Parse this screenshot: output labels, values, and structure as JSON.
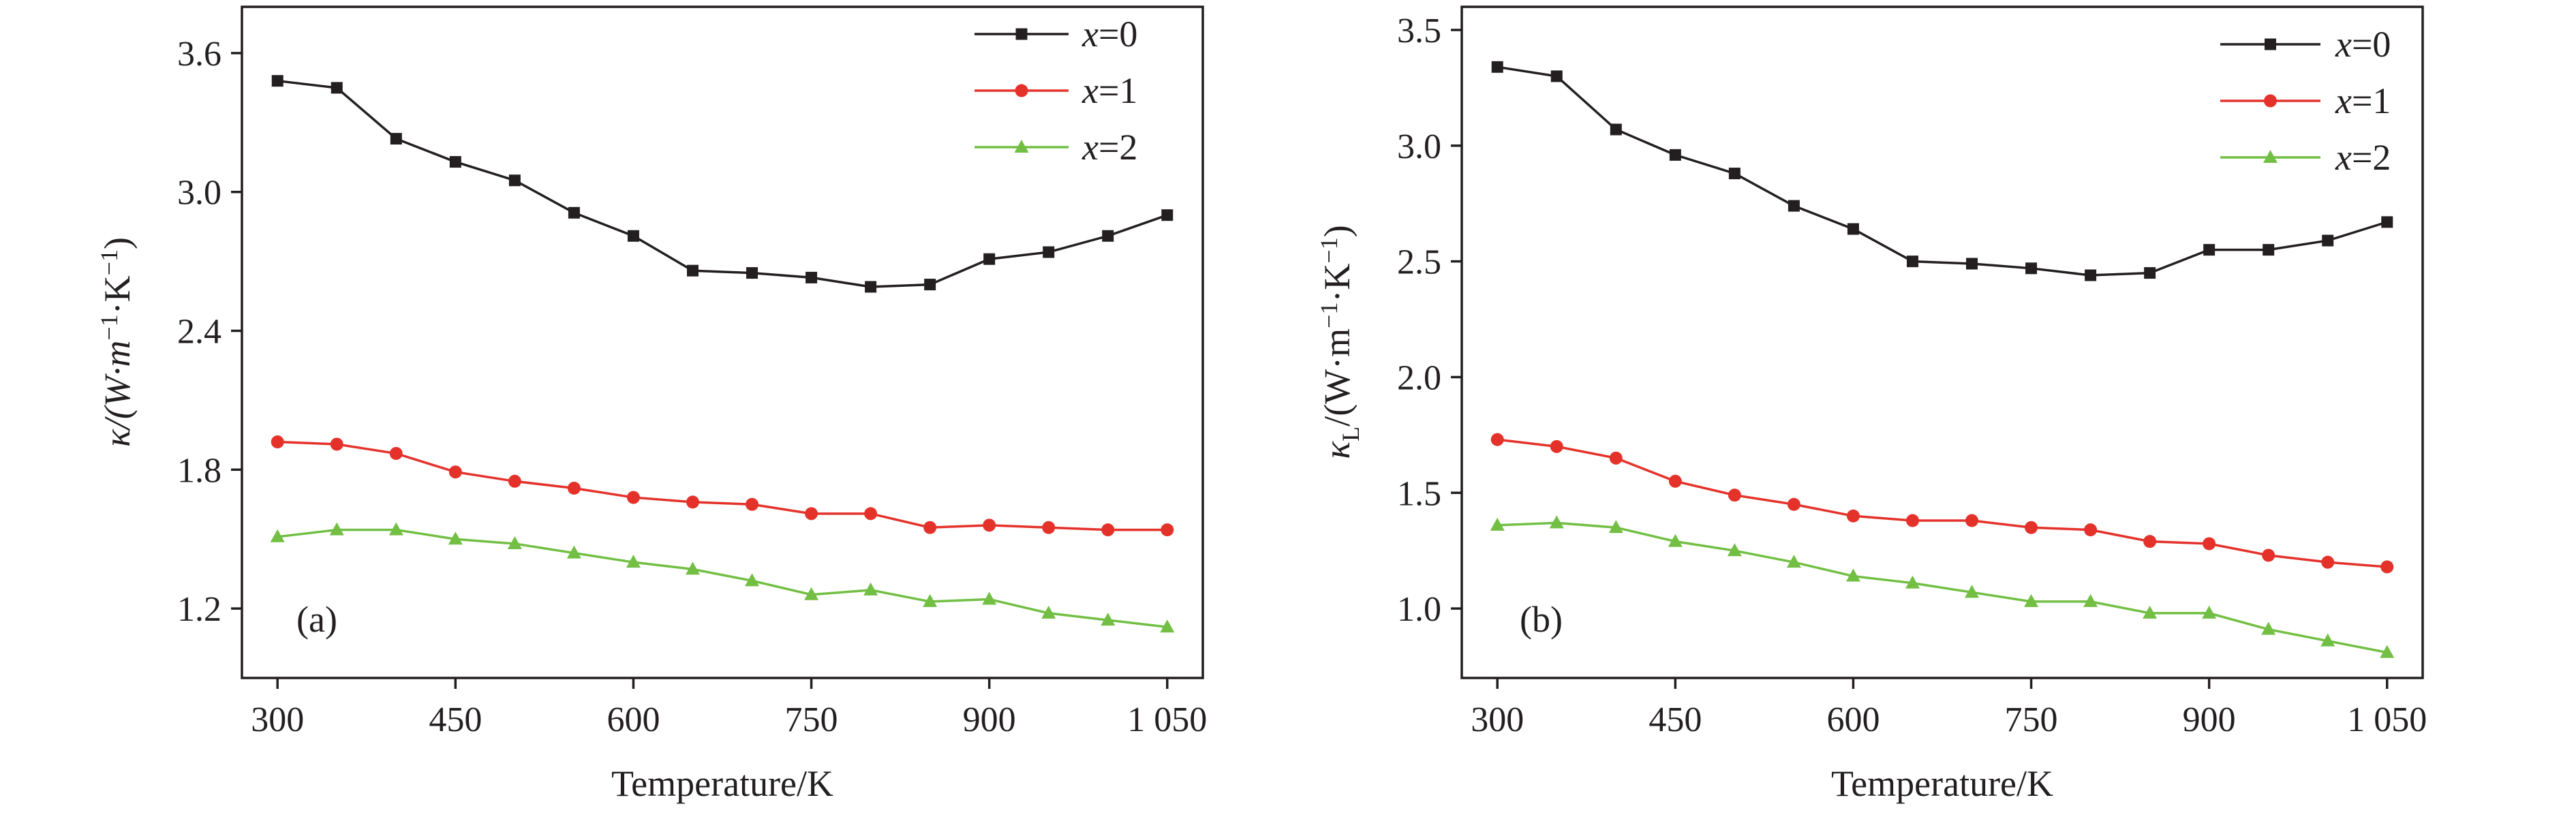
{
  "chart_data": [
    {
      "panel": "(a)",
      "type": "line",
      "xlabel": "Temperature/K",
      "ylabel_main": "κ/(W·m",
      "ylabel_sup1": "−1",
      "ylabel_mid": "·K",
      "ylabel_sup2": "−1",
      "ylabel_end": ")",
      "xlim": [
        270,
        1080
      ],
      "ylim": [
        0.9,
        3.8
      ],
      "xticks": [
        300,
        450,
        600,
        750,
        900,
        1050
      ],
      "xtick_labels": [
        "300",
        "450",
        "600",
        "750",
        "900",
        "1 050"
      ],
      "yticks": [
        1.2,
        1.8,
        2.4,
        3.0,
        3.6
      ],
      "ytick_labels": [
        "1.2",
        "1.8",
        "2.4",
        "3.0",
        "3.6"
      ],
      "x": [
        300,
        350,
        400,
        450,
        500,
        550,
        600,
        650,
        700,
        750,
        800,
        850,
        900,
        950,
        1000,
        1050
      ],
      "series": [
        {
          "name": "x=0",
          "var": "x",
          "eq": "=0",
          "color": "#231f20",
          "marker": "square",
          "values": [
            3.48,
            3.45,
            3.23,
            3.13,
            3.05,
            2.91,
            2.81,
            2.66,
            2.65,
            2.63,
            2.59,
            2.6,
            2.71,
            2.74,
            2.81,
            2.9
          ]
        },
        {
          "name": "x=1",
          "var": "x",
          "eq": "=1",
          "color": "#e4322b",
          "marker": "circle",
          "values": [
            1.92,
            1.91,
            1.87,
            1.79,
            1.75,
            1.72,
            1.68,
            1.66,
            1.65,
            1.61,
            1.61,
            1.55,
            1.56,
            1.55,
            1.54,
            1.54
          ]
        },
        {
          "name": "x=2",
          "var": "x",
          "eq": "=2",
          "color": "#72bf44",
          "marker": "triangle",
          "values": [
            1.51,
            1.54,
            1.54,
            1.5,
            1.48,
            1.44,
            1.4,
            1.37,
            1.32,
            1.26,
            1.28,
            1.23,
            1.24,
            1.18,
            1.15,
            1.12
          ]
        }
      ],
      "legend_position": "top-right"
    },
    {
      "panel": "(b)",
      "type": "line",
      "xlabel": "Temperature/K",
      "ylabel_main": "κ",
      "ylabel_sub": "L",
      "ylabel_rest": "/(W·m",
      "ylabel_sup1": "−1",
      "ylabel_mid": "·K",
      "ylabel_sup2": "−1",
      "ylabel_end": ")",
      "xlim": [
        270,
        1080
      ],
      "ylim": [
        0.7,
        3.6
      ],
      "xticks": [
        300,
        450,
        600,
        750,
        900,
        1050
      ],
      "xtick_labels": [
        "300",
        "450",
        "600",
        "750",
        "900",
        "1 050"
      ],
      "yticks": [
        1.0,
        1.5,
        2.0,
        2.5,
        3.0,
        3.5
      ],
      "ytick_labels": [
        "1.0",
        "1.5",
        "2.0",
        "2.5",
        "3.0",
        "3.5"
      ],
      "x": [
        300,
        350,
        400,
        450,
        500,
        550,
        600,
        650,
        700,
        750,
        800,
        850,
        900,
        950,
        1000,
        1050
      ],
      "series": [
        {
          "name": "x=0",
          "var": "x",
          "eq": "=0",
          "color": "#231f20",
          "marker": "square",
          "values": [
            3.34,
            3.3,
            3.07,
            2.96,
            2.88,
            2.74,
            2.64,
            2.5,
            2.49,
            2.47,
            2.44,
            2.45,
            2.55,
            2.55,
            2.59,
            2.67
          ]
        },
        {
          "name": "x=1",
          "var": "x",
          "eq": "=1",
          "color": "#e4322b",
          "marker": "circle",
          "values": [
            1.73,
            1.7,
            1.65,
            1.55,
            1.49,
            1.45,
            1.4,
            1.38,
            1.38,
            1.35,
            1.34,
            1.29,
            1.28,
            1.23,
            1.2,
            1.18
          ]
        },
        {
          "name": "x=2",
          "var": "x",
          "eq": "=2",
          "color": "#72bf44",
          "marker": "triangle",
          "values": [
            1.36,
            1.37,
            1.35,
            1.29,
            1.25,
            1.2,
            1.14,
            1.11,
            1.07,
            1.03,
            1.03,
            0.98,
            0.98,
            0.91,
            0.86,
            0.81
          ]
        }
      ],
      "legend_position": "top-right"
    }
  ]
}
